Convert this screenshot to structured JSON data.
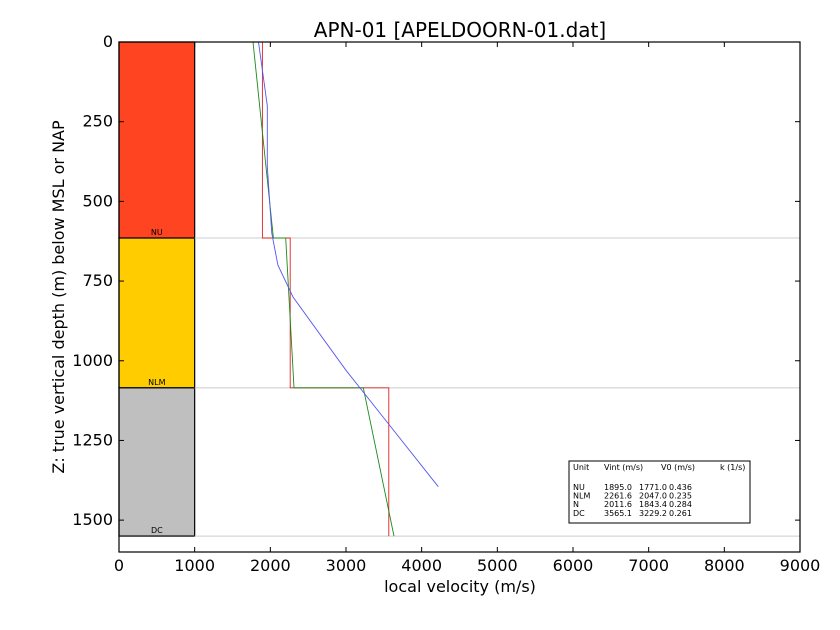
{
  "chart_data": {
    "type": "line",
    "title": "APN-01 [APELDOORN-01.dat]",
    "xlabel": "local velocity (m/s)",
    "ylabel": "Z: true vertical depth (m) below MSL or NAP",
    "xlim": [
      0,
      9000
    ],
    "ylim": [
      0,
      1600
    ],
    "y_inverted": true,
    "xticks": [
      "0",
      "1000",
      "2000",
      "3000",
      "4000",
      "5000",
      "6000",
      "7000",
      "8000",
      "9000"
    ],
    "yticks": [
      "0",
      "250",
      "500",
      "750",
      "1000",
      "1250",
      "1500"
    ],
    "grid": false,
    "units": [
      {
        "name": "NU",
        "top": 0,
        "base": 615,
        "color": "#ff4422"
      },
      {
        "name": "NLM",
        "top": 615,
        "base": 1085,
        "color": "#ffcc00"
      },
      {
        "name": "DC",
        "top": 1085,
        "base": 1550,
        "color": "#bfbfbf"
      }
    ],
    "unit_column_xrange": [
      0,
      1000
    ],
    "series": [
      {
        "color": "#dd2222",
        "points": [
          [
            1895,
            0
          ],
          [
            1895,
            615
          ],
          [
            2262,
            615
          ],
          [
            2262,
            1085
          ],
          [
            3565,
            1085
          ],
          [
            3565,
            1550
          ]
        ]
      },
      {
        "color": "#1a8a1a",
        "points": [
          [
            1771,
            0
          ],
          [
            2040,
            615
          ],
          [
            2203,
            615
          ],
          [
            2313,
            1085
          ],
          [
            3229,
            1085
          ],
          [
            3634,
            1550
          ]
        ]
      },
      {
        "color": "#5555ee",
        "points": [
          [
            1843,
            0
          ],
          [
            1960,
            200
          ],
          [
            1960,
            390
          ],
          [
            2020,
            600
          ],
          [
            2100,
            700
          ],
          [
            2300,
            800
          ],
          [
            3000,
            1030
          ],
          [
            4220,
            1395
          ]
        ]
      }
    ],
    "table": {
      "headers": [
        "Unit",
        "Vint (m/s)",
        "V0 (m/s)",
        "k (1/s)"
      ],
      "rows": [
        [
          "NU",
          "1895.0",
          "1771.0",
          "0.436"
        ],
        [
          "NLM",
          "2261.6",
          "2047.0",
          "0.235"
        ],
        [
          "N",
          "2011.6",
          "1843.4",
          "0.284"
        ],
        [
          "DC",
          "3565.1",
          "3229.2",
          "0.261"
        ]
      ]
    }
  }
}
